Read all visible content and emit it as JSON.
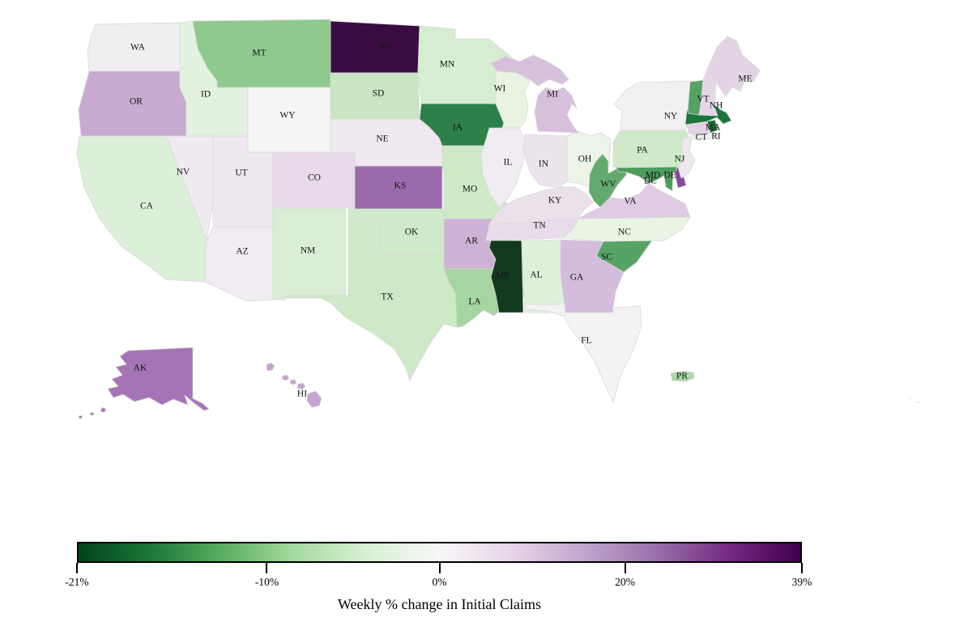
{
  "title": {
    "text": "Weekly % change in Initial Claims"
  },
  "colorbar": {
    "frame_color": "#000000",
    "gradient": [
      "#00441b",
      "#1b7837",
      "#5aae61",
      "#a6dba0",
      "#d9f0d3",
      "#f7f7f7",
      "#e7d4e8",
      "#c2a5cf",
      "#9970ab",
      "#762a83",
      "#40004b"
    ],
    "ticks": [
      {
        "label": "-21%",
        "pos": 0
      },
      {
        "label": "-10%",
        "pos": 26.2
      },
      {
        "label": "0%",
        "pos": 50
      },
      {
        "label": "20%",
        "pos": 75.6
      },
      {
        "label": "39%",
        "pos": 100
      }
    ]
  },
  "map": {
    "label_color": "#141414",
    "border_color": "#d9d9d9"
  },
  "chart_data": {
    "type": "heatmap",
    "subtype": "choropleth-usa-states",
    "title": "Weekly % change in Initial Claims",
    "legend_position": "bottom",
    "colormap": "green-white-purple diverging (PRGn reversed)",
    "value_range_pct": [
      -21,
      39
    ],
    "diverging_center_pct": 0,
    "colorbar_tick_labels": [
      "-21%",
      "-10%",
      "0%",
      "20%",
      "39%"
    ],
    "states": [
      {
        "abbr": "WA",
        "value_est_pct": 1,
        "fill": "#f0eef1"
      },
      {
        "abbr": "OR",
        "value_est_pct": 11,
        "fill": "#c9abd1"
      },
      {
        "abbr": "CA",
        "value_est_pct": -4,
        "fill": "#dcefd8"
      },
      {
        "abbr": "NV",
        "value_est_pct": 2,
        "fill": "#f0eaf1"
      },
      {
        "abbr": "ID",
        "value_est_pct": -3,
        "fill": "#e3f2de"
      },
      {
        "abbr": "MT",
        "value_est_pct": -12,
        "fill": "#8ec98e"
      },
      {
        "abbr": "WY",
        "value_est_pct": 0,
        "fill": "#f6f5f6"
      },
      {
        "abbr": "UT",
        "value_est_pct": 2,
        "fill": "#efe8f0"
      },
      {
        "abbr": "CO",
        "value_est_pct": 4,
        "fill": "#e7d9e9"
      },
      {
        "abbr": "AZ",
        "value_est_pct": 2,
        "fill": "#f1ebf2"
      },
      {
        "abbr": "NM",
        "value_est_pct": -4,
        "fill": "#d9eed5"
      },
      {
        "abbr": "ND",
        "value_est_pct": 38,
        "fill": "#3b0c44"
      },
      {
        "abbr": "SD",
        "value_est_pct": -6,
        "fill": "#c8e6c1"
      },
      {
        "abbr": "NE",
        "value_est_pct": 2,
        "fill": "#f0e9f1"
      },
      {
        "abbr": "KS",
        "value_est_pct": 23,
        "fill": "#9c6bad"
      },
      {
        "abbr": "OK",
        "value_est_pct": -5,
        "fill": "#cfeac8"
      },
      {
        "abbr": "TX",
        "value_est_pct": -5,
        "fill": "#cde9c6"
      },
      {
        "abbr": "MN",
        "value_est_pct": -5,
        "fill": "#d6edd1"
      },
      {
        "abbr": "IA",
        "value_est_pct": -16,
        "fill": "#2e8049"
      },
      {
        "abbr": "MO",
        "value_est_pct": -5,
        "fill": "#cde9c6"
      },
      {
        "abbr": "AR",
        "value_est_pct": 10,
        "fill": "#ceb2d6"
      },
      {
        "abbr": "LA",
        "value_est_pct": -9,
        "fill": "#a5d5a0"
      },
      {
        "abbr": "WI",
        "value_est_pct": -3,
        "fill": "#e7f4e2"
      },
      {
        "abbr": "IL",
        "value_est_pct": 1,
        "fill": "#f1ecf2"
      },
      {
        "abbr": "MI",
        "value_est_pct": 8,
        "fill": "#d7c0dc"
      },
      {
        "abbr": "IN",
        "value_est_pct": 2,
        "fill": "#ece4ed"
      },
      {
        "abbr": "OH",
        "value_est_pct": -2,
        "fill": "#ebf5e7"
      },
      {
        "abbr": "KY",
        "value_est_pct": 3,
        "fill": "#eae1eb"
      },
      {
        "abbr": "TN",
        "value_est_pct": 4,
        "fill": "#e8dcea"
      },
      {
        "abbr": "MS",
        "value_est_pct": -20,
        "fill": "#11391e"
      },
      {
        "abbr": "AL",
        "value_est_pct": -4,
        "fill": "#dff0da"
      },
      {
        "abbr": "GA",
        "value_est_pct": 9,
        "fill": "#d4bcdc"
      },
      {
        "abbr": "SC",
        "value_est_pct": -13,
        "fill": "#55a465"
      },
      {
        "abbr": "NC",
        "value_est_pct": -2,
        "fill": "#e9f5e4"
      },
      {
        "abbr": "FL",
        "value_est_pct": 0,
        "fill": "#f4f3f4"
      },
      {
        "abbr": "WV",
        "value_est_pct": -12,
        "fill": "#62aa6e"
      },
      {
        "abbr": "VA",
        "value_est_pct": 6,
        "fill": "#dfcbe3"
      },
      {
        "abbr": "PA",
        "value_est_pct": -5,
        "fill": "#cfeac8"
      },
      {
        "abbr": "NY",
        "value_est_pct": 0,
        "fill": "#f2f0f2"
      },
      {
        "abbr": "NJ",
        "value_est_pct": 2,
        "fill": "#eee7ef"
      },
      {
        "abbr": "MD",
        "value_est_pct": -14,
        "fill": "#4c9c5c"
      },
      {
        "abbr": "DE",
        "value_est_pct": 27,
        "fill": "#8648a0"
      },
      {
        "abbr": "DC",
        "value_est_pct": -14,
        "fill": "#4c9c5c"
      },
      {
        "abbr": "CT",
        "value_est_pct": 5,
        "fill": "#e3d2e5"
      },
      {
        "abbr": "RI",
        "value_est_pct": -19,
        "fill": "#1a6e35"
      },
      {
        "abbr": "MA",
        "value_est_pct": -18,
        "fill": "#1c753a"
      },
      {
        "abbr": "VT",
        "value_est_pct": -13,
        "fill": "#55a263"
      },
      {
        "abbr": "NH",
        "value_est_pct": 5,
        "fill": "#e5d6e7"
      },
      {
        "abbr": "ME",
        "value_est_pct": 5,
        "fill": "#e3d3e5"
      },
      {
        "abbr": "AK",
        "value_est_pct": 21,
        "fill": "#a674b6"
      },
      {
        "abbr": "HI",
        "value_est_pct": 13,
        "fill": "#c7a3cf"
      },
      {
        "abbr": "PR",
        "value_est_pct": -8,
        "fill": "#abd8a6"
      }
    ]
  }
}
